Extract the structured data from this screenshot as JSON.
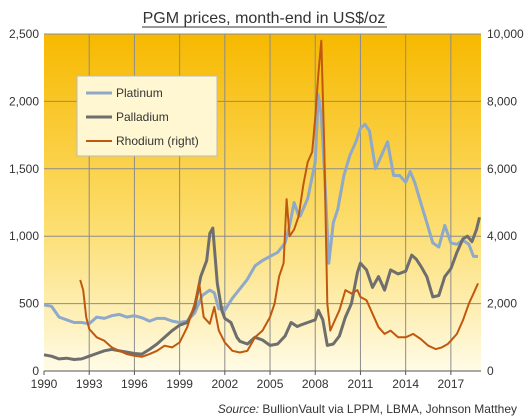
{
  "chart_data": {
    "type": "line",
    "title": "PGM prices, month-end  in US$/oz",
    "source_prefix": "Source:",
    "source_text": "BullionVault via  LPPM, LBMA, Johnson Matthey",
    "x_ticks": [
      "1990",
      "1993",
      "1996",
      "1999",
      "2002",
      "2005",
      "2008",
      "2011",
      "2014",
      "2017"
    ],
    "xlim": [
      1990,
      2019
    ],
    "y_left_ticks": [
      "0",
      "500",
      "1,000",
      "1,500",
      "2,000",
      "2,500"
    ],
    "ylim_left": [
      0,
      2500
    ],
    "y_right_ticks": [
      "0",
      "2,000",
      "4,000",
      "6,000",
      "8,000",
      "10,000"
    ],
    "ylim_right": [
      0,
      10000
    ],
    "grid": true,
    "legend_position": "top-left",
    "series": [
      {
        "name": "Platinum",
        "axis": "left",
        "color": "#8fa9c9",
        "points": [
          [
            1990,
            490
          ],
          [
            1990.5,
            480
          ],
          [
            1991,
            400
          ],
          [
            1991.5,
            380
          ],
          [
            1992,
            360
          ],
          [
            1992.5,
            360
          ],
          [
            1993,
            350
          ],
          [
            1993.5,
            400
          ],
          [
            1994,
            390
          ],
          [
            1994.5,
            410
          ],
          [
            1995,
            420
          ],
          [
            1995.5,
            400
          ],
          [
            1996,
            410
          ],
          [
            1996.5,
            395
          ],
          [
            1997,
            370
          ],
          [
            1997.5,
            390
          ],
          [
            1998,
            390
          ],
          [
            1998.5,
            370
          ],
          [
            1999,
            360
          ],
          [
            1999.5,
            370
          ],
          [
            2000,
            430
          ],
          [
            2000.5,
            560
          ],
          [
            2001,
            600
          ],
          [
            2001.3,
            580
          ],
          [
            2001.6,
            460
          ],
          [
            2001.9,
            470
          ],
          [
            2002,
            450
          ],
          [
            2002.5,
            540
          ],
          [
            2003,
            610
          ],
          [
            2003.5,
            680
          ],
          [
            2004,
            780
          ],
          [
            2004.5,
            820
          ],
          [
            2005,
            850
          ],
          [
            2005.5,
            880
          ],
          [
            2006,
            950
          ],
          [
            2006.3,
            1080
          ],
          [
            2006.6,
            1250
          ],
          [
            2006.9,
            1150
          ],
          [
            2007,
            1150
          ],
          [
            2007.5,
            1280
          ],
          [
            2008,
            1550
          ],
          [
            2008.2,
            2050
          ],
          [
            2008.4,
            1900
          ],
          [
            2008.6,
            1500
          ],
          [
            2008.9,
            800
          ],
          [
            2009.2,
            1100
          ],
          [
            2009.5,
            1200
          ],
          [
            2009.9,
            1450
          ],
          [
            2010.3,
            1600
          ],
          [
            2010.7,
            1700
          ],
          [
            2011,
            1800
          ],
          [
            2011.3,
            1830
          ],
          [
            2011.6,
            1780
          ],
          [
            2012,
            1500
          ],
          [
            2012.4,
            1600
          ],
          [
            2012.8,
            1700
          ],
          [
            2013.2,
            1450
          ],
          [
            2013.6,
            1450
          ],
          [
            2014,
            1400
          ],
          [
            2014.3,
            1480
          ],
          [
            2014.6,
            1400
          ],
          [
            2015,
            1250
          ],
          [
            2015.4,
            1100
          ],
          [
            2015.8,
            950
          ],
          [
            2016.2,
            920
          ],
          [
            2016.6,
            1080
          ],
          [
            2017,
            950
          ],
          [
            2017.4,
            940
          ],
          [
            2017.8,
            970
          ],
          [
            2018.2,
            940
          ],
          [
            2018.5,
            850
          ],
          [
            2018.8,
            850
          ]
        ]
      },
      {
        "name": "Palladium",
        "axis": "left",
        "color": "#6e6e6e",
        "points": [
          [
            1990,
            120
          ],
          [
            1990.5,
            110
          ],
          [
            1991,
            90
          ],
          [
            1991.5,
            95
          ],
          [
            1992,
            85
          ],
          [
            1992.5,
            90
          ],
          [
            1993,
            110
          ],
          [
            1993.5,
            130
          ],
          [
            1994,
            150
          ],
          [
            1994.5,
            160
          ],
          [
            1995,
            150
          ],
          [
            1995.5,
            140
          ],
          [
            1996,
            130
          ],
          [
            1996.5,
            125
          ],
          [
            1997,
            160
          ],
          [
            1997.5,
            200
          ],
          [
            1998,
            250
          ],
          [
            1998.5,
            300
          ],
          [
            1999,
            340
          ],
          [
            1999.5,
            360
          ],
          [
            2000,
            470
          ],
          [
            2000.4,
            700
          ],
          [
            2000.8,
            820
          ],
          [
            2001,
            1020
          ],
          [
            2001.2,
            1060
          ],
          [
            2001.5,
            650
          ],
          [
            2001.8,
            450
          ],
          [
            2002,
            390
          ],
          [
            2002.4,
            360
          ],
          [
            2002.8,
            250
          ],
          [
            2003,
            220
          ],
          [
            2003.5,
            200
          ],
          [
            2004,
            250
          ],
          [
            2004.5,
            230
          ],
          [
            2005,
            190
          ],
          [
            2005.5,
            200
          ],
          [
            2006,
            260
          ],
          [
            2006.4,
            360
          ],
          [
            2006.8,
            330
          ],
          [
            2007,
            340
          ],
          [
            2007.5,
            360
          ],
          [
            2008,
            380
          ],
          [
            2008.2,
            450
          ],
          [
            2008.5,
            380
          ],
          [
            2008.8,
            190
          ],
          [
            2009.2,
            200
          ],
          [
            2009.6,
            260
          ],
          [
            2010,
            400
          ],
          [
            2010.4,
            500
          ],
          [
            2010.8,
            730
          ],
          [
            2011,
            800
          ],
          [
            2011.4,
            750
          ],
          [
            2011.8,
            620
          ],
          [
            2012.2,
            700
          ],
          [
            2012.6,
            600
          ],
          [
            2013,
            750
          ],
          [
            2013.5,
            720
          ],
          [
            2014,
            740
          ],
          [
            2014.4,
            860
          ],
          [
            2014.7,
            830
          ],
          [
            2015,
            780
          ],
          [
            2015.4,
            700
          ],
          [
            2015.8,
            550
          ],
          [
            2016.2,
            560
          ],
          [
            2016.6,
            700
          ],
          [
            2017,
            760
          ],
          [
            2017.4,
            880
          ],
          [
            2017.8,
            980
          ],
          [
            2018.1,
            1000
          ],
          [
            2018.4,
            960
          ],
          [
            2018.7,
            1050
          ],
          [
            2018.9,
            1140
          ]
        ]
      },
      {
        "name": "Rhodium (right)",
        "axis": "right",
        "color": "#c0580f",
        "points": [
          [
            1992.4,
            2700
          ],
          [
            1992.6,
            2400
          ],
          [
            1992.8,
            1600
          ],
          [
            1993,
            1250
          ],
          [
            1993.5,
            1000
          ],
          [
            1994,
            900
          ],
          [
            1994.5,
            700
          ],
          [
            1995,
            600
          ],
          [
            1995.5,
            500
          ],
          [
            1996,
            450
          ],
          [
            1996.5,
            420
          ],
          [
            1997,
            500
          ],
          [
            1997.5,
            600
          ],
          [
            1998,
            750
          ],
          [
            1998.5,
            700
          ],
          [
            1999,
            850
          ],
          [
            1999.5,
            1300
          ],
          [
            2000,
            2000
          ],
          [
            2000.3,
            2600
          ],
          [
            2000.6,
            1600
          ],
          [
            2001,
            1400
          ],
          [
            2001.3,
            1900
          ],
          [
            2001.6,
            1200
          ],
          [
            2002,
            850
          ],
          [
            2002.5,
            600
          ],
          [
            2003,
            550
          ],
          [
            2003.5,
            600
          ],
          [
            2004,
            1000
          ],
          [
            2004.5,
            1200
          ],
          [
            2005,
            1600
          ],
          [
            2005.3,
            2000
          ],
          [
            2005.6,
            2800
          ],
          [
            2005.9,
            3200
          ],
          [
            2006.1,
            5100
          ],
          [
            2006.3,
            4000
          ],
          [
            2006.6,
            4200
          ],
          [
            2006.9,
            4600
          ],
          [
            2007.2,
            5500
          ],
          [
            2007.5,
            6200
          ],
          [
            2007.8,
            6500
          ],
          [
            2008,
            7500
          ],
          [
            2008.2,
            8800
          ],
          [
            2008.4,
            9800
          ],
          [
            2008.6,
            6600
          ],
          [
            2008.8,
            2000
          ],
          [
            2009,
            1200
          ],
          [
            2009.3,
            1500
          ],
          [
            2009.6,
            1800
          ],
          [
            2010,
            2400
          ],
          [
            2010.4,
            2300
          ],
          [
            2010.8,
            2400
          ],
          [
            2011,
            2200
          ],
          [
            2011.4,
            2100
          ],
          [
            2011.8,
            1700
          ],
          [
            2012.2,
            1300
          ],
          [
            2012.6,
            1100
          ],
          [
            2013,
            1200
          ],
          [
            2013.5,
            1000
          ],
          [
            2014,
            1000
          ],
          [
            2014.5,
            1100
          ],
          [
            2015,
            950
          ],
          [
            2015.5,
            750
          ],
          [
            2016,
            650
          ],
          [
            2016.4,
            700
          ],
          [
            2016.8,
            800
          ],
          [
            2017,
            900
          ],
          [
            2017.4,
            1100
          ],
          [
            2017.8,
            1500
          ],
          [
            2018.2,
            2000
          ],
          [
            2018.5,
            2300
          ],
          [
            2018.8,
            2600
          ]
        ]
      }
    ]
  }
}
